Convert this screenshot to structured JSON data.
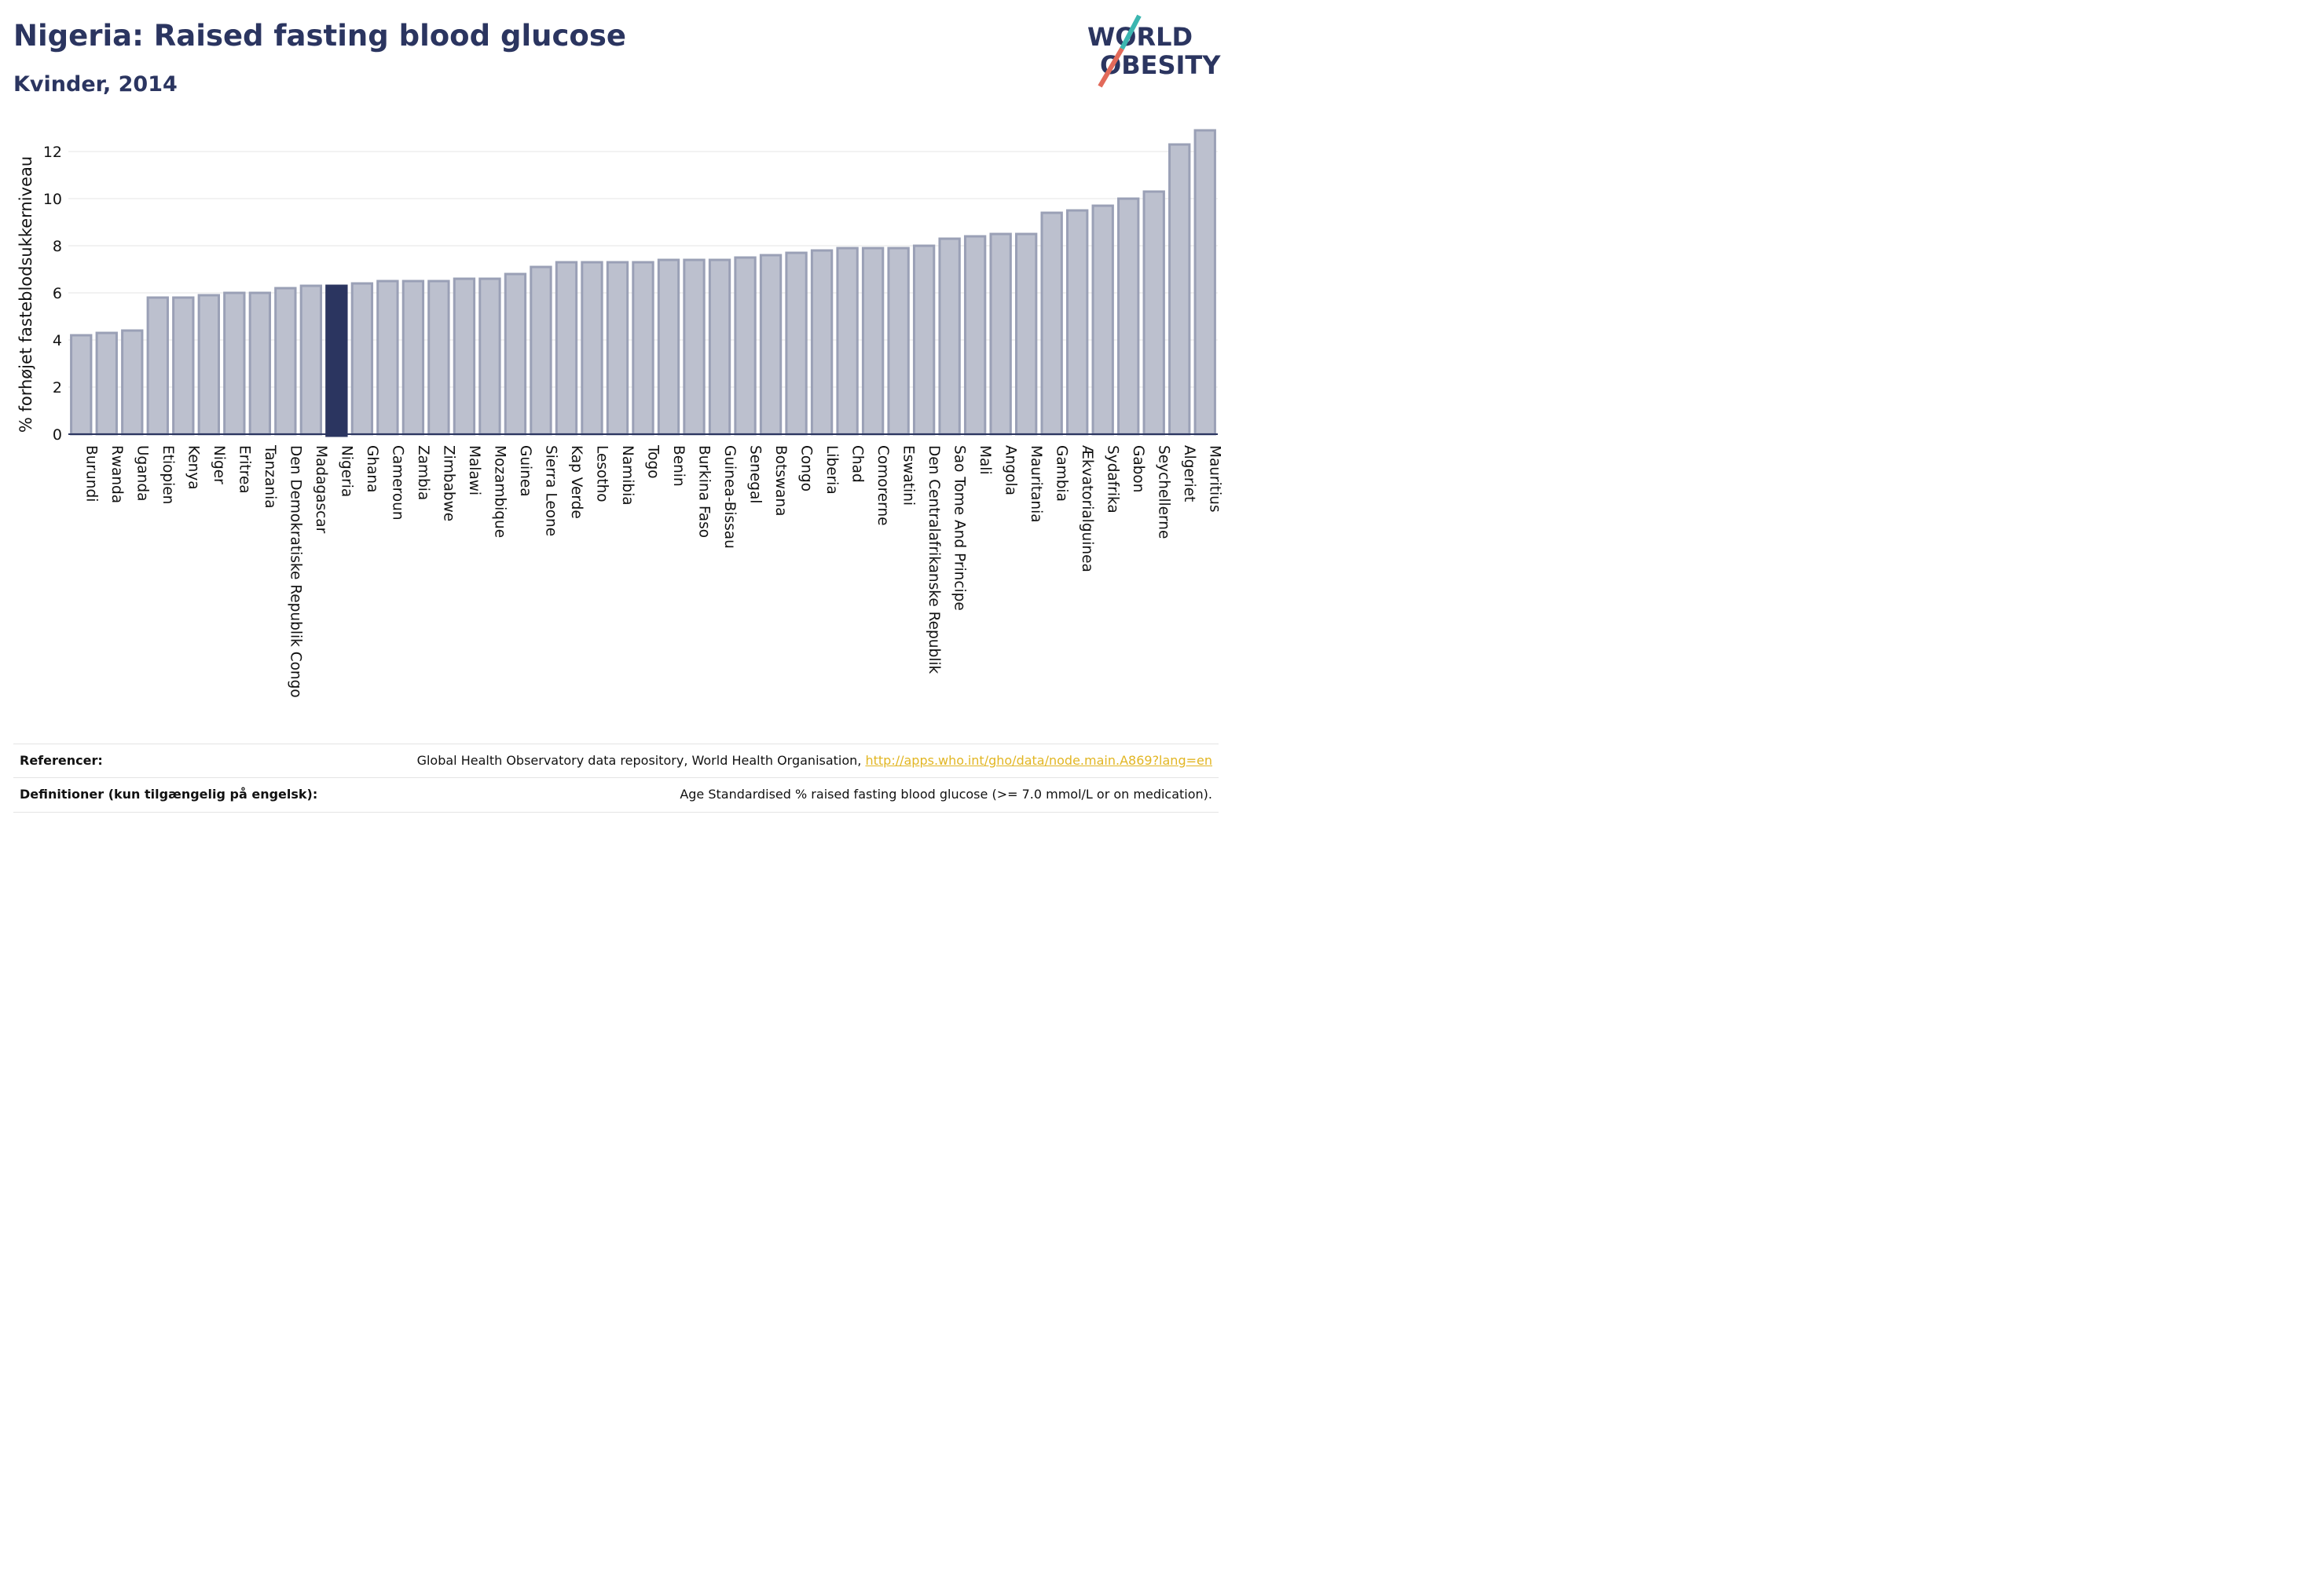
{
  "header": {
    "title": "Nigeria: Raised fasting blood glucose",
    "subtitle": "Kvinder, 2014"
  },
  "logo": {
    "line1": "WORLD",
    "line2": "OBESITY",
    "colors": {
      "text": "#2b3560",
      "slash_top": "#3bb6b0",
      "slash_bottom": "#e26a5a"
    }
  },
  "colors": {
    "bar_fill": "#bcc0ce",
    "bar_stroke": "#9aa0b6",
    "highlight_fill": "#2b3560",
    "grid": "#e6e6e6",
    "axis": "#2b3560"
  },
  "chart_data": {
    "type": "bar",
    "ylabel": "% forhøjet fasteblodsukkerniveau",
    "ylim": [
      0,
      13.1
    ],
    "yticks": [
      0,
      2,
      4,
      6,
      8,
      10,
      12
    ],
    "grid": true,
    "highlight": "Nigeria",
    "categories": [
      "Burundi",
      "Rwanda",
      "Uganda",
      "Etiopien",
      "Kenya",
      "Niger",
      "Eritrea",
      "Tanzania",
      "Den Demokratiske Republik Congo",
      "Madagascar",
      "Nigeria",
      "Ghana",
      "Cameroun",
      "Zambia",
      "Zimbabwe",
      "Malawi",
      "Mozambique",
      "Guinea",
      "Sierra Leone",
      "Kap Verde",
      "Lesotho",
      "Namibia",
      "Togo",
      "Benin",
      "Burkina Faso",
      "Guinea-Bissau",
      "Senegal",
      "Botswana",
      "Congo",
      "Liberia",
      "Chad",
      "Comorerne",
      "Eswatini",
      "Den Centralafrikanske Republik",
      "Sao Tome And Principe",
      "Mali",
      "Angola",
      "Mauritania",
      "Gambia",
      "Ækvatorialguinea",
      "Sydafrika",
      "Gabon",
      "Seychellerne",
      "Algeriet",
      "Mauritius"
    ],
    "values": [
      4.2,
      4.3,
      4.4,
      5.8,
      5.8,
      5.9,
      6.0,
      6.0,
      6.2,
      6.3,
      6.3,
      6.4,
      6.5,
      6.5,
      6.5,
      6.6,
      6.6,
      6.8,
      7.1,
      7.3,
      7.3,
      7.3,
      7.3,
      7.4,
      7.4,
      7.4,
      7.5,
      7.6,
      7.7,
      7.8,
      7.9,
      7.9,
      7.9,
      8.0,
      8.3,
      8.4,
      8.5,
      8.5,
      9.4,
      9.5,
      9.7,
      10.0,
      10.3,
      12.3,
      12.9
    ]
  },
  "footer": {
    "references_label": "Referencer:",
    "references_text": "Global Health Observatory data repository, World Health Organisation, ",
    "references_link": "http://apps.who.int/gho/data/node.main.A869?lang=en",
    "definitions_label": "Definitioner (kun tilgængelig på engelsk):",
    "definitions_text": "Age Standardised % raised fasting blood glucose (>= 7.0 mmol/L or on medication)."
  }
}
